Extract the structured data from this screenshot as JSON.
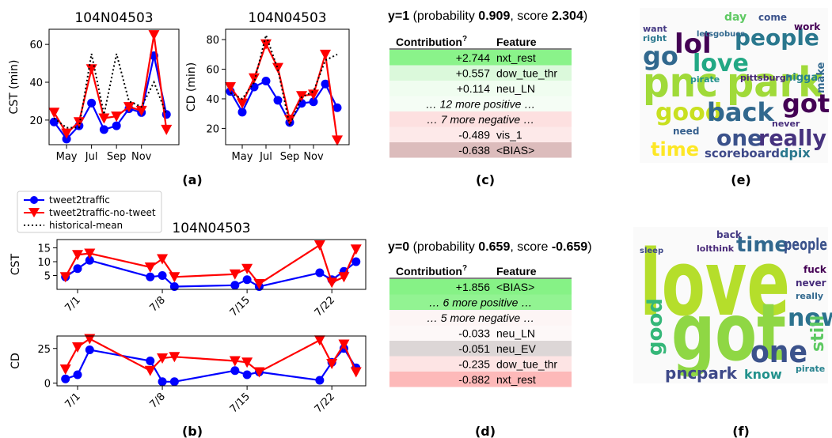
{
  "chart_data": [
    {
      "type": "line",
      "title": "104N04503",
      "ylabel": "CST (min)",
      "x": [
        4,
        5,
        6,
        7,
        8,
        9,
        10,
        11,
        12,
        13
      ],
      "xlim": [
        3.6,
        14.0
      ],
      "xticks": [
        {
          "value": 5,
          "label": "May"
        },
        {
          "value": 7,
          "label": "Jul"
        },
        {
          "value": 9,
          "label": "Sep"
        },
        {
          "value": 11,
          "label": "Nov"
        }
      ],
      "ylim": [
        7,
        68
      ],
      "yticks": [
        20,
        40,
        60
      ],
      "series": [
        {
          "name": "tweet2traffic",
          "color": "#0000ff",
          "marker": "circle",
          "linestyle": "solid",
          "values": [
            19,
            10,
            17,
            29,
            15,
            17,
            26,
            24,
            54,
            23
          ]
        },
        {
          "name": "tweet2traffic-no-tweet",
          "color": "#ff0000",
          "marker": "triangle-down",
          "linestyle": "solid",
          "values": [
            24,
            13,
            19,
            47,
            21,
            22,
            27,
            25,
            65,
            15
          ]
        },
        {
          "name": "historical-mean",
          "color": "#000000",
          "marker": "none",
          "linestyle": "dotted",
          "values": [
            21,
            16,
            16,
            55,
            23,
            55,
            30,
            27,
            40,
            23
          ]
        }
      ]
    },
    {
      "type": "line",
      "title": "104N04503",
      "ylabel": "CD (min)",
      "x": [
        4,
        5,
        6,
        7,
        8,
        9,
        10,
        11,
        12,
        13
      ],
      "xlim": [
        3.6,
        14.0
      ],
      "xticks": [
        {
          "value": 5,
          "label": "May"
        },
        {
          "value": 7,
          "label": "Jul"
        },
        {
          "value": 9,
          "label": "Sep"
        },
        {
          "value": 11,
          "label": "Nov"
        }
      ],
      "ylim": [
        9,
        87
      ],
      "yticks": [
        20,
        40,
        60,
        80
      ],
      "series": [
        {
          "name": "tweet2traffic",
          "color": "#0000ff",
          "marker": "circle",
          "linestyle": "solid",
          "values": [
            45,
            31,
            48,
            52,
            39,
            24,
            37,
            38,
            50,
            34
          ]
        },
        {
          "name": "tweet2traffic-no-tweet",
          "color": "#ff0000",
          "marker": "triangle-down",
          "linestyle": "solid",
          "values": [
            48,
            37,
            54,
            77,
            61,
            26,
            42,
            43,
            70,
            12
          ]
        },
        {
          "name": "historical-mean",
          "color": "#000000",
          "marker": "none",
          "linestyle": "dotted",
          "values": [
            44,
            40,
            51,
            83,
            60,
            22,
            41,
            45,
            66,
            70
          ]
        }
      ]
    },
    {
      "type": "line",
      "title": "104N04503",
      "ylabel": "CST",
      "x": [
        0,
        1,
        2,
        7,
        8,
        9,
        14,
        15,
        16,
        21,
        22,
        23,
        24
      ],
      "xlim": [
        -0.7,
        24.8
      ],
      "xticks": [
        {
          "value": 1,
          "label": "7/1"
        },
        {
          "value": 8,
          "label": "7/8"
        },
        {
          "value": 15,
          "label": "7/15"
        },
        {
          "value": 22,
          "label": "7/22"
        }
      ],
      "ylim": [
        0,
        18
      ],
      "yticks": [
        5,
        10,
        15
      ],
      "series": [
        {
          "name": "tweet2traffic",
          "color": "#0000ff",
          "marker": "circle",
          "linestyle": "solid",
          "values": [
            4.5,
            7.5,
            10.5,
            4.5,
            5,
            1,
            1.5,
            3.5,
            1,
            6,
            3.5,
            6.5,
            10
          ]
        },
        {
          "name": "tweet2traffic-no-tweet",
          "color": "#ff0000",
          "marker": "triangle-down",
          "linestyle": "solid",
          "values": [
            4.5,
            12.5,
            13,
            8,
            11,
            4.5,
            5.5,
            7.5,
            2,
            16,
            2.5,
            4.5,
            14.5
          ]
        }
      ]
    },
    {
      "type": "line",
      "ylabel": "CD",
      "x": [
        0,
        1,
        2,
        7,
        8,
        9,
        14,
        15,
        16,
        21,
        22,
        23,
        24
      ],
      "xlim": [
        -0.7,
        24.8
      ],
      "xticks": [
        {
          "value": 1,
          "label": "7/1"
        },
        {
          "value": 8,
          "label": "7/8"
        },
        {
          "value": 15,
          "label": "7/15"
        },
        {
          "value": 22,
          "label": "7/22"
        }
      ],
      "ylim": [
        -2,
        34
      ],
      "yticks": [
        0,
        25
      ],
      "series": [
        {
          "name": "tweet2traffic",
          "color": "#0000ff",
          "marker": "circle",
          "linestyle": "solid",
          "values": [
            3,
            6,
            24,
            16,
            1,
            1,
            9,
            6,
            8,
            2,
            15,
            25,
            11
          ]
        },
        {
          "name": "tweet2traffic-no-tweet",
          "color": "#ff0000",
          "marker": "triangle-down",
          "linestyle": "solid",
          "values": [
            10,
            26,
            32,
            9,
            18,
            19,
            16,
            15,
            8,
            31,
            14,
            28,
            8
          ]
        }
      ]
    }
  ],
  "panel_labels": [
    "(a)",
    "(b)",
    "(c)",
    "(d)",
    "(e)",
    "(f)"
  ],
  "tables": [
    {
      "title_parts": [
        "y=1",
        " (probability ",
        "0.909",
        ", score ",
        "2.304",
        ")"
      ],
      "header": [
        "Contribution",
        "?",
        "Feature"
      ],
      "rows": [
        {
          "contribution": "+2.744",
          "feature": "nxt_rest",
          "color": "#8af38a"
        },
        {
          "contribution": "+0.557",
          "feature": "dow_tue_thr",
          "color": "#dbf9db"
        },
        {
          "contribution": "+0.114",
          "feature": "neu_LN",
          "color": "#f0fdf0"
        },
        {
          "text": "… 12 more positive …",
          "color": "#f5fdf5"
        },
        {
          "text": "… 7 more negative …",
          "color": "#fde0e0"
        },
        {
          "contribution": "-0.489",
          "feature": "vis_1",
          "color": "#fde9e9"
        },
        {
          "contribution": "-0.638",
          "feature": "<BIAS>",
          "color": "#dcbcbc"
        }
      ]
    },
    {
      "title_parts": [
        "y=0",
        " (probability ",
        "0.659",
        ", score ",
        "-0.659",
        ")"
      ],
      "header": [
        "Contribution",
        "?",
        "Feature"
      ],
      "rows": [
        {
          "contribution": "+1.856",
          "feature": "<BIAS>",
          "color": "#86f286"
        },
        {
          "text": "… 6 more positive …",
          "color": "#92f392"
        },
        {
          "text": "… 5 more negative …",
          "color": "#fdf5f5"
        },
        {
          "contribution": "-0.033",
          "feature": "neu_LN",
          "color": "#fdf8f8"
        },
        {
          "contribution": "-0.051",
          "feature": "neu_EV",
          "color": "#dcd6d6"
        },
        {
          "contribution": "-0.235",
          "feature": "dow_tue_thr",
          "color": "#fde4e4"
        },
        {
          "contribution": "-0.882",
          "feature": "nxt_rest",
          "color": "#fdb9b9"
        }
      ]
    }
  ],
  "word_clouds": [
    {
      "words": [
        "pnc",
        "park",
        "people",
        "lol",
        "go",
        "love",
        "good",
        "back",
        "got",
        "one",
        "really",
        "time",
        "scoreboard",
        "dpix",
        "day",
        "come",
        "work",
        "pirate",
        "pittsburgh",
        "nigga",
        "need",
        "never",
        "make",
        "want",
        "right",
        "letsgobucs"
      ]
    },
    {
      "words": [
        "love",
        "got",
        "time",
        "people",
        "now",
        "one",
        "good",
        "pnc",
        "park",
        "know",
        "still",
        "fuck",
        "back",
        "never",
        "really",
        "pirate",
        "lolthink",
        "sleep"
      ]
    }
  ]
}
